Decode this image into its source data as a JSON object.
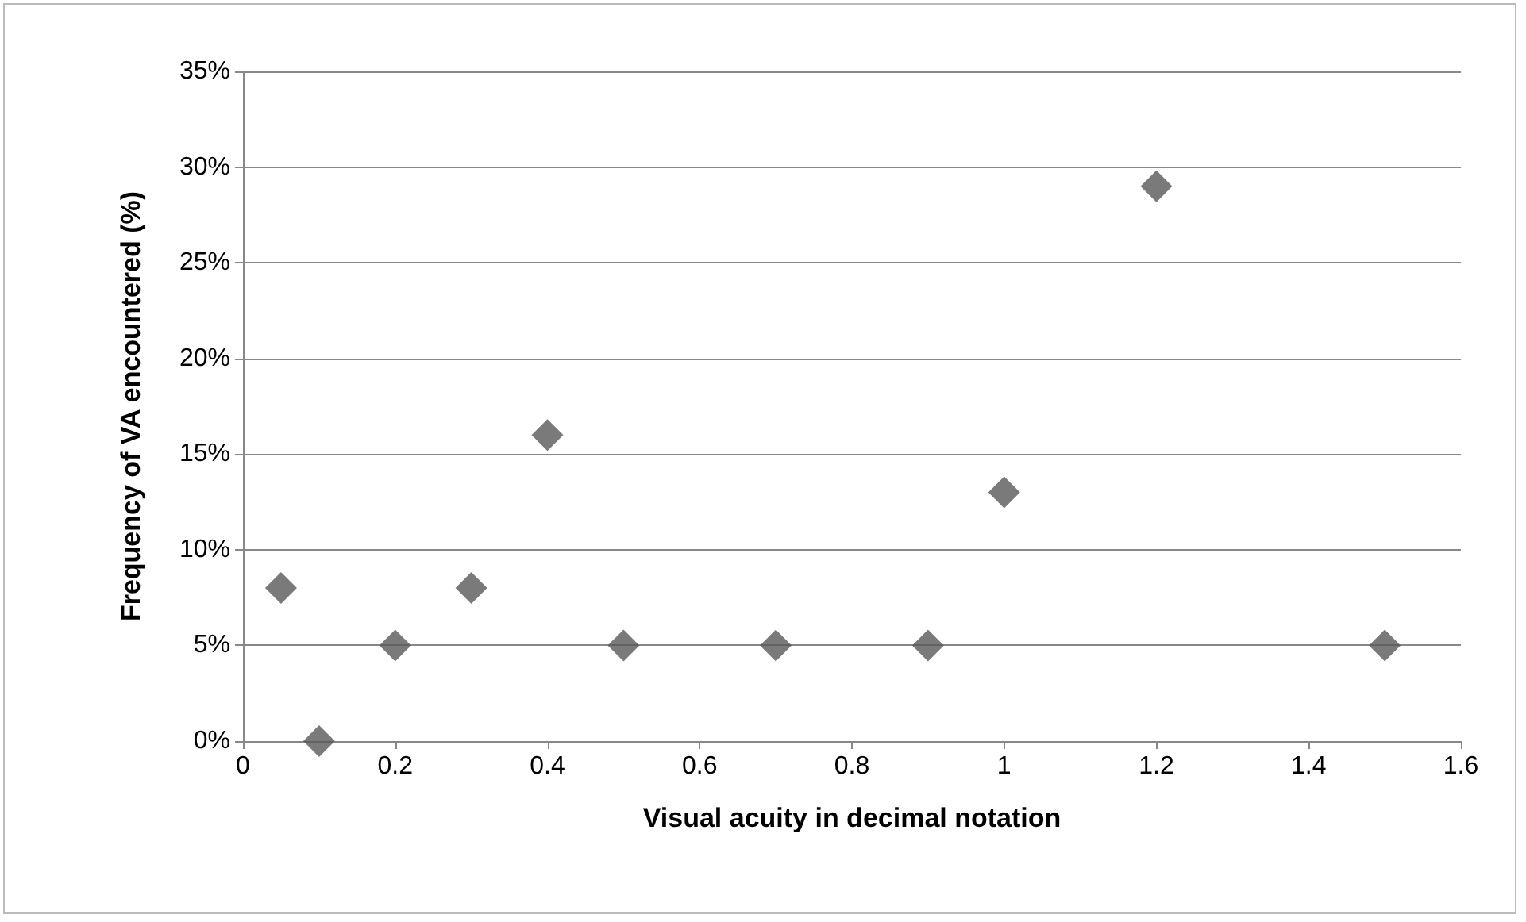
{
  "chart_data": {
    "type": "scatter",
    "xlabel": "Visual acuity in decimal notation",
    "ylabel": "Frequency of VA encountered (%)",
    "x": [
      0.05,
      0.1,
      0.2,
      0.3,
      0.4,
      0.5,
      0.7,
      0.9,
      1,
      1.2,
      1.5
    ],
    "values": [
      8,
      0,
      5,
      8,
      16,
      5,
      5,
      5,
      13,
      29,
      5
    ],
    "color": "#595959",
    "marker": "diamond",
    "grid": "y",
    "xlim": [
      0,
      1.6
    ],
    "xticks": [
      0,
      0.2,
      0.4,
      0.6,
      0.8,
      1,
      1.2,
      1.4,
      1.6
    ],
    "ylim": [
      0,
      35
    ],
    "yticks": [
      {
        "value": 0,
        "label": "0%"
      },
      {
        "value": 5,
        "label": "5%"
      },
      {
        "value": 10,
        "label": "10%"
      },
      {
        "value": 15,
        "label": "15%"
      },
      {
        "value": 20,
        "label": "20%"
      },
      {
        "value": 25,
        "label": "25%"
      },
      {
        "value": 30,
        "label": "30%"
      },
      {
        "value": 35,
        "label": "35%"
      }
    ]
  }
}
